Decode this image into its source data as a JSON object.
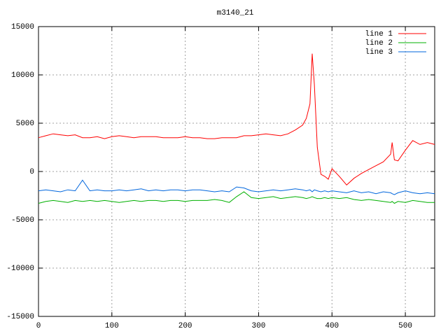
{
  "chart_data": {
    "type": "line",
    "title": "m3140_21",
    "x": [
      0,
      10,
      20,
      30,
      40,
      50,
      60,
      70,
      80,
      90,
      100,
      110,
      120,
      130,
      140,
      150,
      160,
      170,
      180,
      190,
      200,
      210,
      220,
      230,
      240,
      250,
      260,
      270,
      280,
      290,
      300,
      310,
      320,
      330,
      340,
      350,
      360,
      365,
      370,
      373,
      376,
      380,
      385,
      390,
      395,
      400,
      410,
      420,
      430,
      440,
      450,
      460,
      470,
      480,
      482,
      485,
      490,
      500,
      510,
      520,
      530,
      540
    ],
    "series": [
      {
        "name": "line 1",
        "color": "#ff0000",
        "values": [
          3500,
          3700,
          3900,
          3800,
          3700,
          3800,
          3500,
          3500,
          3600,
          3400,
          3600,
          3700,
          3600,
          3500,
          3600,
          3600,
          3600,
          3500,
          3500,
          3500,
          3600,
          3500,
          3500,
          3400,
          3400,
          3500,
          3500,
          3500,
          3700,
          3700,
          3800,
          3900,
          3800,
          3700,
          3900,
          4300,
          4800,
          5500,
          7000,
          12200,
          9000,
          2500,
          -300,
          -500,
          -800,
          300,
          -500,
          -1400,
          -700,
          -200,
          200,
          600,
          1000,
          1800,
          3000,
          1200,
          1100,
          2200,
          3200,
          2800,
          3000,
          2800
        ]
      },
      {
        "name": "line 2",
        "color": "#00b000",
        "values": [
          -3300,
          -3100,
          -3000,
          -3100,
          -3200,
          -3000,
          -3100,
          -3000,
          -3100,
          -3000,
          -3100,
          -3200,
          -3100,
          -3000,
          -3100,
          -3000,
          -3000,
          -3100,
          -3000,
          -3000,
          -3100,
          -3000,
          -3000,
          -3000,
          -2900,
          -3000,
          -3200,
          -2600,
          -2100,
          -2700,
          -2800,
          -2700,
          -2600,
          -2800,
          -2700,
          -2600,
          -2700,
          -2800,
          -2700,
          -2600,
          -2700,
          -2800,
          -2800,
          -2700,
          -2800,
          -2700,
          -2800,
          -2700,
          -2900,
          -3000,
          -2900,
          -3000,
          -3100,
          -3200,
          -3100,
          -3300,
          -3100,
          -3200,
          -3000,
          -3100,
          -3200,
          -3200
        ]
      },
      {
        "name": "line 3",
        "color": "#0066dd",
        "values": [
          -2000,
          -1900,
          -2000,
          -2100,
          -1900,
          -2000,
          -900,
          -2000,
          -1900,
          -2000,
          -2000,
          -1900,
          -2000,
          -1900,
          -1800,
          -2000,
          -1900,
          -2000,
          -1900,
          -1900,
          -2000,
          -1900,
          -1900,
          -2000,
          -2100,
          -2000,
          -2100,
          -1600,
          -1700,
          -2000,
          -2100,
          -2000,
          -1900,
          -2000,
          -1900,
          -1800,
          -1900,
          -2000,
          -1900,
          -2100,
          -1900,
          -2000,
          -2100,
          -2000,
          -2100,
          -2000,
          -2100,
          -2200,
          -2000,
          -2200,
          -2100,
          -2300,
          -2100,
          -2200,
          -2300,
          -2400,
          -2200,
          -2000,
          -2200,
          -2300,
          -2200,
          -2300
        ]
      }
    ],
    "xlim": [
      0,
      540
    ],
    "ylim": [
      -15000,
      15000
    ],
    "xticks": [
      0,
      100,
      200,
      300,
      400,
      500
    ],
    "yticks": [
      -15000,
      -10000,
      -5000,
      0,
      5000,
      10000,
      15000
    ],
    "grid": true,
    "legend": "top-right"
  }
}
